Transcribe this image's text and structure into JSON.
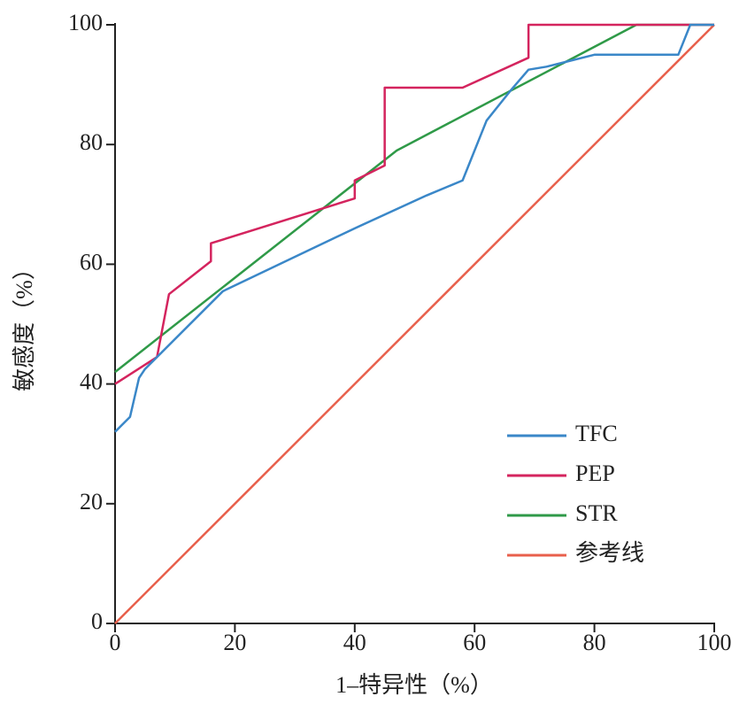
{
  "chart_data": {
    "type": "line",
    "x_label": "1–特异性（%）",
    "y_label": "敏感度（%）",
    "xlim": [
      0,
      100
    ],
    "ylim": [
      0,
      100
    ],
    "xticks": [
      0,
      20,
      40,
      60,
      80,
      100
    ],
    "yticks": [
      0,
      20,
      40,
      60,
      80,
      100
    ],
    "legend": "lower right",
    "series": [
      {
        "name": "TFC",
        "color": "#3a87c8",
        "x": [
          0,
          1,
          2.5,
          4,
          5,
          18,
          40,
          52,
          58,
          62,
          66,
          69,
          72,
          80,
          94,
          96,
          100
        ],
        "values": [
          32,
          33,
          34.5,
          41,
          42.5,
          55.5,
          66,
          71.5,
          74,
          84,
          89,
          92.5,
          93,
          95,
          95,
          100,
          100
        ]
      },
      {
        "name": "PEP",
        "color": "#d4245e",
        "x": [
          0,
          7,
          9,
          16,
          16,
          40,
          40,
          45,
          45,
          58,
          69,
          69,
          100
        ],
        "values": [
          40,
          44.5,
          55,
          60.5,
          63.5,
          71,
          74,
          76.5,
          89.5,
          89.5,
          94.5,
          100,
          100
        ]
      },
      {
        "name": "STR",
        "color": "#2f9a48",
        "x": [
          0,
          47,
          87,
          100
        ],
        "values": [
          42,
          79,
          100,
          100
        ]
      },
      {
        "name": "参考线",
        "color": "#e8604c",
        "x": [
          0,
          100
        ],
        "values": [
          0,
          100
        ]
      }
    ]
  }
}
